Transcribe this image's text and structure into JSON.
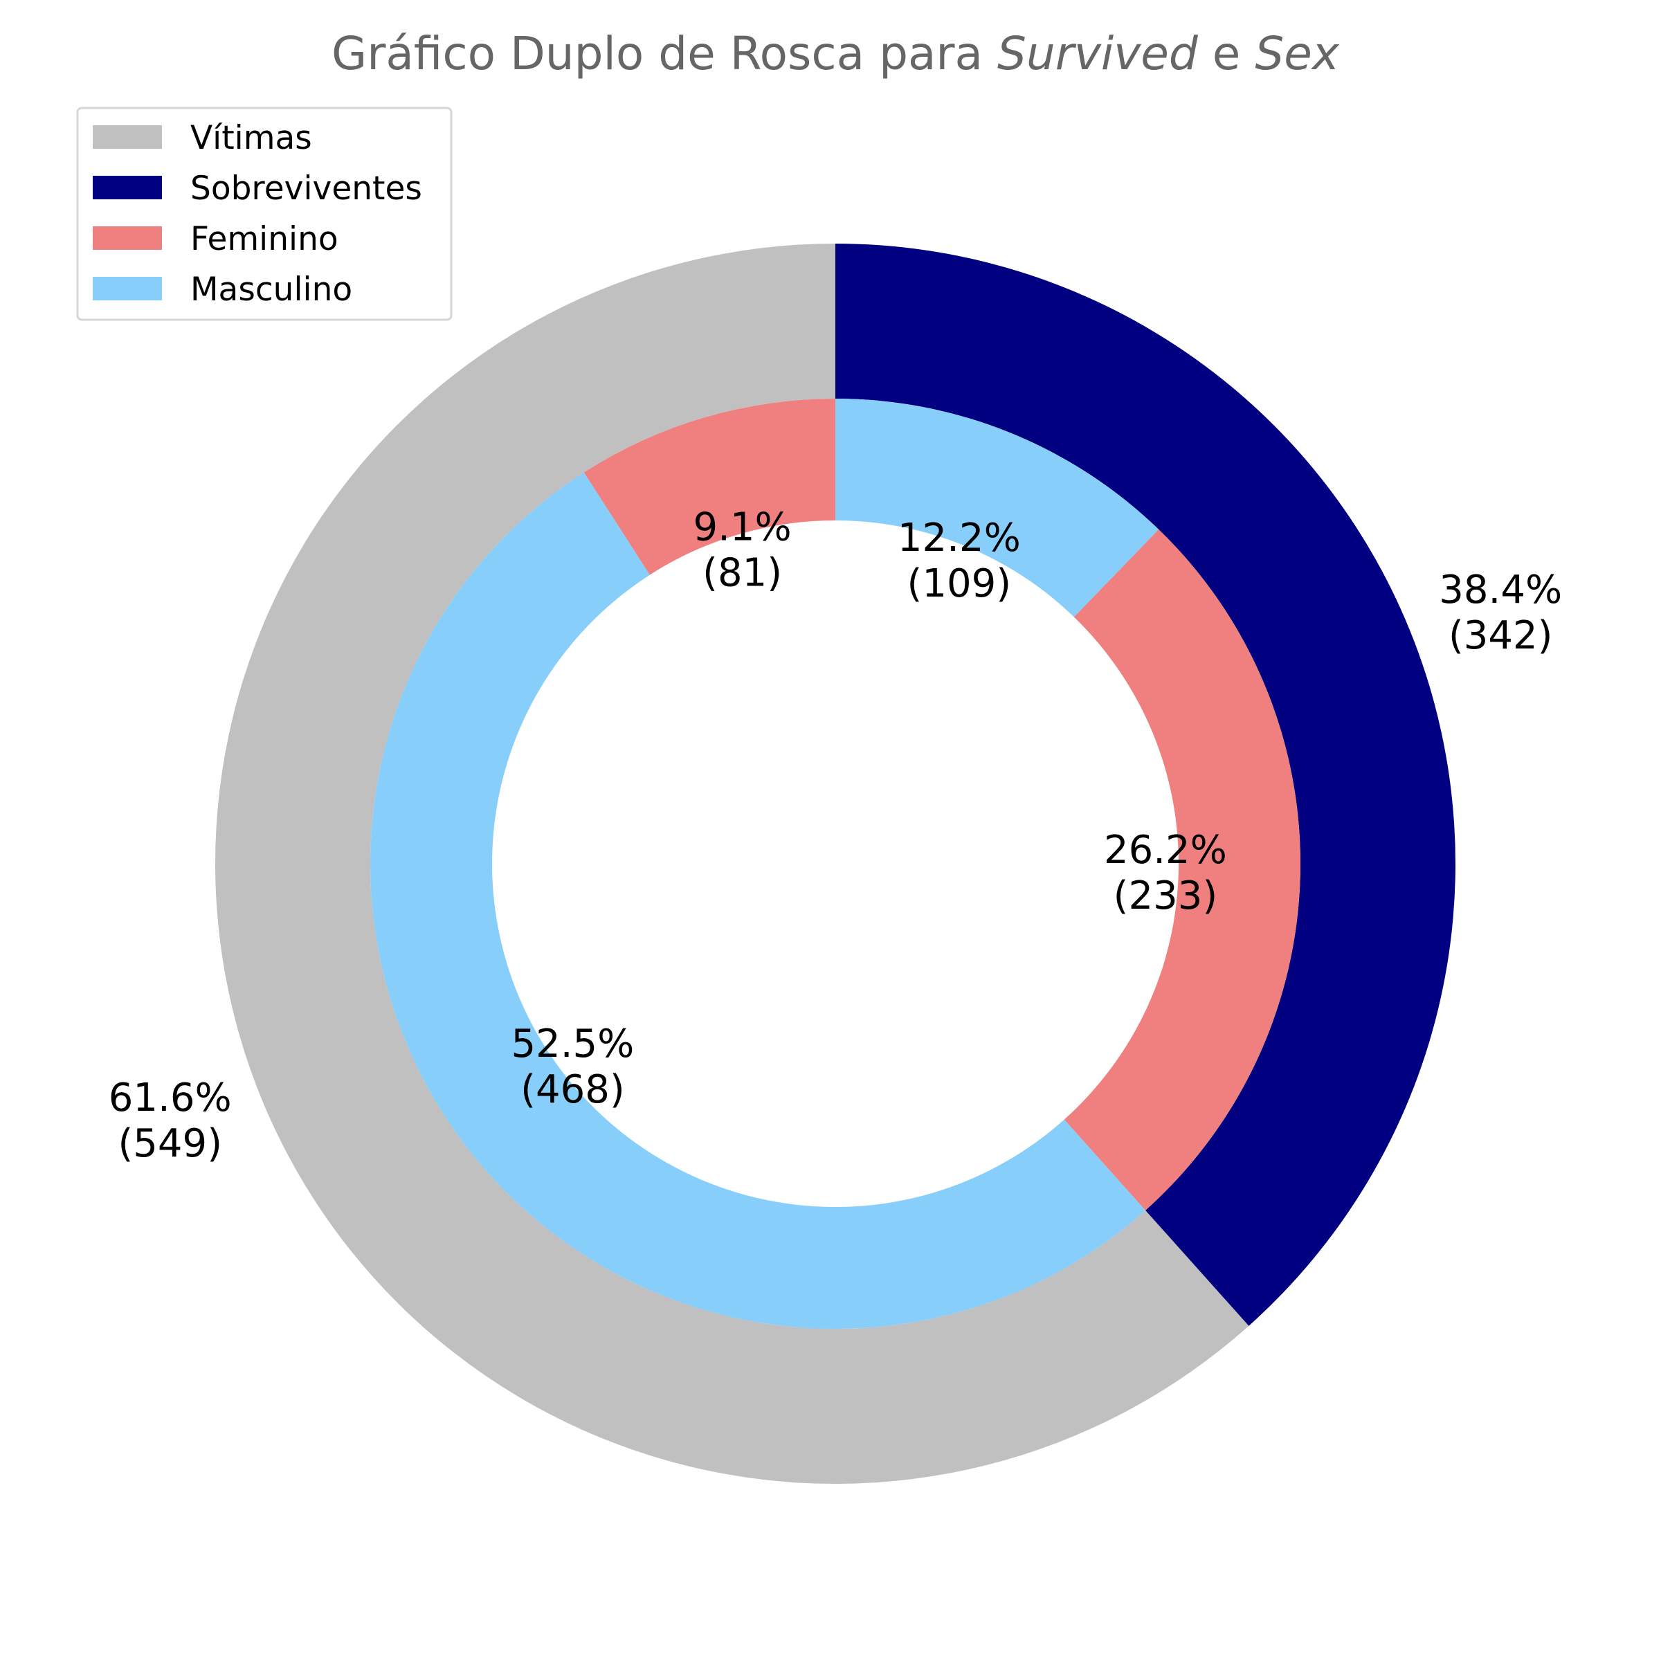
{
  "chart_data": {
    "type": "pie",
    "variant": "double-donut",
    "title": {
      "prefix": "Gráfico Duplo de Rosca para ",
      "var1": "Survived",
      "joiner": " e ",
      "var2": "Sex"
    },
    "legend": {
      "placement": "top-left",
      "entries": [
        {
          "label": "Vítimas",
          "color": "#c0c0c0"
        },
        {
          "label": "Sobreviventes",
          "color": "#000080"
        },
        {
          "label": "Feminino",
          "color": "#f08080"
        },
        {
          "label": "Masculino",
          "color": "#87cefa"
        }
      ]
    },
    "start_angle_deg": 90,
    "direction": "counterclockwise",
    "outer_ring": {
      "slices": [
        {
          "label": "Vítimas",
          "value": 549,
          "percent_label": "61.6%",
          "count_label": "(549)",
          "color": "#c0c0c0"
        },
        {
          "label": "Sobreviventes",
          "value": 342,
          "percent_label": "38.4%",
          "count_label": "(342)",
          "color": "#000080"
        }
      ]
    },
    "inner_ring": {
      "slices": [
        {
          "label": "Feminino",
          "group": "Vítimas",
          "value": 81,
          "percent_label": "9.1%",
          "count_label": "(81)",
          "color": "#f08080"
        },
        {
          "label": "Masculino",
          "group": "Vítimas",
          "value": 468,
          "percent_label": "52.5%",
          "count_label": "(468)",
          "color": "#87cefa"
        },
        {
          "label": "Feminino",
          "group": "Sobreviventes",
          "value": 233,
          "percent_label": "26.2%",
          "count_label": "(233)",
          "color": "#f08080"
        },
        {
          "label": "Masculino",
          "group": "Sobreviventes",
          "value": 109,
          "percent_label": "12.2%",
          "count_label": "(109)",
          "color": "#87cefa"
        }
      ]
    }
  }
}
